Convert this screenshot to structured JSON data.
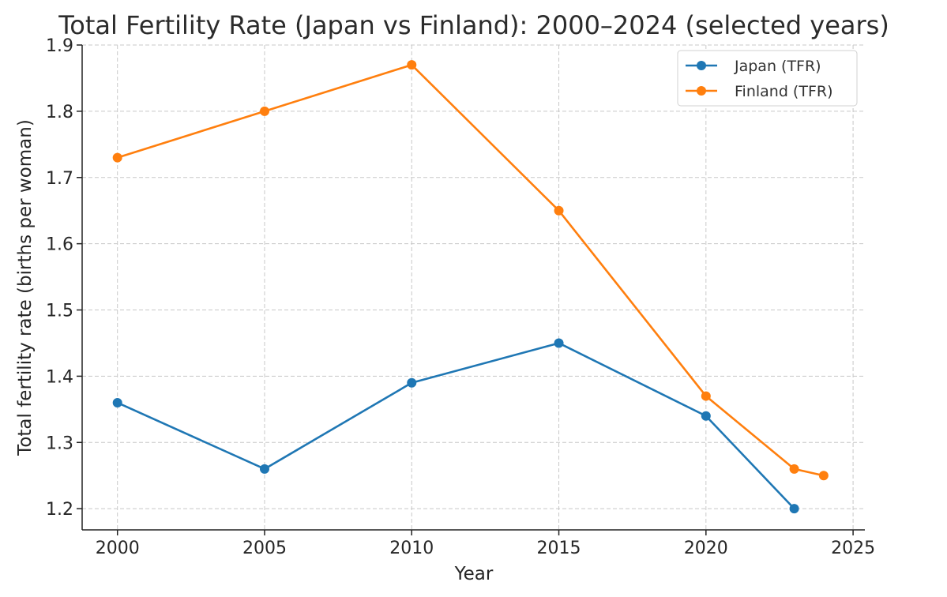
{
  "chart_data": {
    "type": "line",
    "title": "Total Fertility Rate (Japan vs Finland): 2000–2024 (selected years)",
    "xlabel": "Year",
    "ylabel": "Total fertility rate (births per woman)",
    "xlim": [
      1998.8,
      2025.4
    ],
    "ylim": [
      1.168,
      1.9
    ],
    "xticks": [
      2000,
      2005,
      2010,
      2015,
      2020,
      2025
    ],
    "yticks": [
      1.2,
      1.3,
      1.4,
      1.5,
      1.6,
      1.7,
      1.8,
      1.9
    ],
    "grid": true,
    "legend_position": "top-right",
    "series": [
      {
        "name": "Japan (TFR)",
        "color": "#1f77b4",
        "x": [
          2000,
          2005,
          2010,
          2015,
          2020,
          2023
        ],
        "y": [
          1.36,
          1.26,
          1.39,
          1.45,
          1.34,
          1.2
        ]
      },
      {
        "name": "Finland (TFR)",
        "color": "#ff7f0e",
        "x": [
          2000,
          2005,
          2010,
          2015,
          2020,
          2023,
          2024
        ],
        "y": [
          1.73,
          1.8,
          1.87,
          1.65,
          1.37,
          1.26,
          1.25
        ]
      }
    ]
  }
}
